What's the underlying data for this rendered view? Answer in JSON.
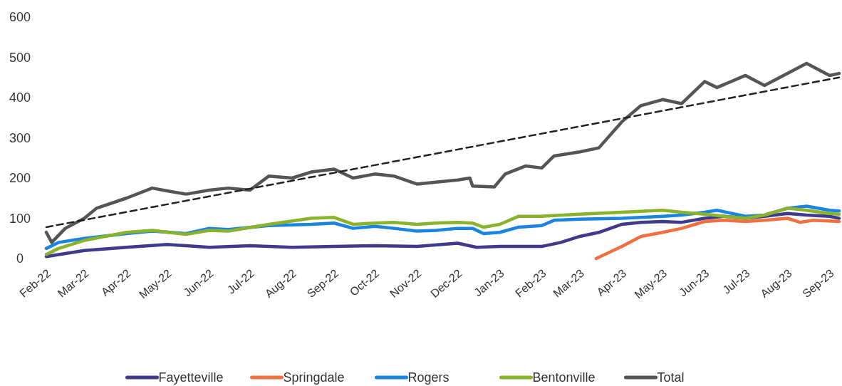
{
  "chart_data": {
    "type": "line",
    "legend": "bottom",
    "grid": false,
    "line_style": "solid",
    "ylim": [
      0,
      600
    ],
    "yticks": [
      0,
      100,
      200,
      300,
      400,
      500,
      600
    ],
    "xlim": [
      "2022-02-01",
      "2023-09-08"
    ],
    "xticks": [
      {
        "value": "2022-02-01",
        "label": "Feb-22"
      },
      {
        "value": "2022-03-01",
        "label": "Mar-22"
      },
      {
        "value": "2022-04-01",
        "label": "Apr-22"
      },
      {
        "value": "2022-05-01",
        "label": "May-22"
      },
      {
        "value": "2022-06-01",
        "label": "Jun-22"
      },
      {
        "value": "2022-07-01",
        "label": "Jul-22"
      },
      {
        "value": "2022-08-01",
        "label": "Aug-22"
      },
      {
        "value": "2022-09-01",
        "label": "Sep-22"
      },
      {
        "value": "2022-10-01",
        "label": "Oct-22"
      },
      {
        "value": "2022-11-01",
        "label": "Nov-22"
      },
      {
        "value": "2022-12-01",
        "label": "Dec-22"
      },
      {
        "value": "2023-01-01",
        "label": "Jan-23"
      },
      {
        "value": "2023-02-01",
        "label": "Feb-23"
      },
      {
        "value": "2023-03-01",
        "label": "Mar-23"
      },
      {
        "value": "2023-04-01",
        "label": "Apr-23"
      },
      {
        "value": "2023-05-01",
        "label": "May-23"
      },
      {
        "value": "2023-06-01",
        "label": "Jun-23"
      },
      {
        "value": "2023-07-01",
        "label": "Jul-23"
      },
      {
        "value": "2023-08-01",
        "label": "Aug-23"
      },
      {
        "value": "2023-09-01",
        "label": "Sep-23"
      }
    ],
    "series": [
      {
        "name": "Fayetteville",
        "color": "#3f3a8c",
        "x": [
          "2022-02-01",
          "2022-03-01",
          "2022-04-01",
          "2022-05-01",
          "2022-06-01",
          "2022-07-01",
          "2022-08-01",
          "2022-09-01",
          "2022-10-01",
          "2022-11-01",
          "2022-12-01",
          "2022-12-15",
          "2023-01-01",
          "2023-02-01",
          "2023-02-15",
          "2023-03-01",
          "2023-03-15",
          "2023-04-01",
          "2023-04-15",
          "2023-05-01",
          "2023-05-15",
          "2023-06-01",
          "2023-06-15",
          "2023-07-01",
          "2023-07-15",
          "2023-08-01",
          "2023-08-15",
          "2023-09-01",
          "2023-09-08"
        ],
        "values": [
          5,
          20,
          28,
          35,
          28,
          32,
          28,
          30,
          32,
          30,
          38,
          28,
          30,
          30,
          40,
          55,
          65,
          85,
          90,
          92,
          90,
          100,
          105,
          100,
          105,
          112,
          108,
          105,
          100
        ]
      },
      {
        "name": "Springdale",
        "color": "#f07040",
        "x": [
          "2023-03-13",
          "2023-04-01",
          "2023-04-15",
          "2023-05-01",
          "2023-05-15",
          "2023-06-01",
          "2023-06-15",
          "2023-07-01",
          "2023-07-15",
          "2023-08-01",
          "2023-08-10",
          "2023-08-20",
          "2023-09-08"
        ],
        "values": [
          0,
          30,
          55,
          65,
          75,
          92,
          95,
          92,
          95,
          100,
          90,
          95,
          92
        ]
      },
      {
        "name": "Rogers",
        "color": "#1a85e0",
        "x": [
          "2022-02-01",
          "2022-02-10",
          "2022-03-01",
          "2022-04-01",
          "2022-04-20",
          "2022-05-15",
          "2022-06-01",
          "2022-06-15",
          "2022-07-15",
          "2022-08-15",
          "2022-09-01",
          "2022-09-15",
          "2022-10-01",
          "2022-10-15",
          "2022-11-01",
          "2022-11-15",
          "2022-12-01",
          "2022-12-12",
          "2022-12-20",
          "2023-01-01",
          "2023-01-15",
          "2023-02-01",
          "2023-02-10",
          "2023-03-01",
          "2023-04-01",
          "2023-05-01",
          "2023-05-15",
          "2023-06-01",
          "2023-06-10",
          "2023-07-01",
          "2023-07-15",
          "2023-08-01",
          "2023-08-15",
          "2023-09-01",
          "2023-09-08"
        ],
        "values": [
          25,
          40,
          50,
          62,
          68,
          62,
          75,
          72,
          82,
          85,
          88,
          75,
          80,
          75,
          68,
          70,
          75,
          75,
          62,
          65,
          78,
          82,
          95,
          98,
          100,
          105,
          108,
          115,
          120,
          105,
          108,
          125,
          130,
          120,
          118
        ]
      },
      {
        "name": "Bentonville",
        "color": "#8ab22a",
        "x": [
          "2022-02-01",
          "2022-02-10",
          "2022-03-01",
          "2022-04-01",
          "2022-04-20",
          "2022-05-15",
          "2022-06-01",
          "2022-06-15",
          "2022-07-15",
          "2022-08-15",
          "2022-09-01",
          "2022-09-15",
          "2022-10-01",
          "2022-10-15",
          "2022-11-01",
          "2022-11-15",
          "2022-12-01",
          "2022-12-12",
          "2022-12-20",
          "2023-01-01",
          "2023-01-15",
          "2023-02-01",
          "2023-03-01",
          "2023-04-01",
          "2023-05-01",
          "2023-05-15",
          "2023-06-01",
          "2023-06-15",
          "2023-07-01",
          "2023-07-15",
          "2023-08-01",
          "2023-08-15",
          "2023-09-01",
          "2023-09-08"
        ],
        "values": [
          10,
          25,
          45,
          65,
          70,
          60,
          70,
          68,
          85,
          100,
          102,
          85,
          88,
          90,
          85,
          88,
          90,
          88,
          78,
          85,
          105,
          105,
          110,
          115,
          120,
          115,
          110,
          105,
          100,
          108,
          125,
          120,
          112,
          110
        ]
      },
      {
        "name": "Total",
        "color": "#555555",
        "x": [
          "2022-02-01",
          "2022-02-05",
          "2022-02-15",
          "2022-03-01",
          "2022-03-10",
          "2022-04-01",
          "2022-04-20",
          "2022-05-01",
          "2022-05-15",
          "2022-06-01",
          "2022-06-15",
          "2022-07-01",
          "2022-07-15",
          "2022-08-01",
          "2022-08-15",
          "2022-09-01",
          "2022-09-15",
          "2022-10-01",
          "2022-10-15",
          "2022-11-01",
          "2022-11-15",
          "2022-12-01",
          "2022-12-10",
          "2022-12-12",
          "2022-12-28",
          "2023-01-05",
          "2023-01-20",
          "2023-02-01",
          "2023-02-10",
          "2023-03-01",
          "2023-03-15",
          "2023-04-01",
          "2023-04-15",
          "2023-05-01",
          "2023-05-15",
          "2023-06-01",
          "2023-06-10",
          "2023-07-01",
          "2023-07-15",
          "2023-08-01",
          "2023-08-15",
          "2023-09-01",
          "2023-09-08"
        ],
        "values": [
          65,
          40,
          75,
          100,
          125,
          150,
          175,
          168,
          160,
          170,
          175,
          170,
          205,
          200,
          215,
          222,
          200,
          210,
          205,
          185,
          190,
          195,
          200,
          180,
          178,
          210,
          230,
          225,
          255,
          265,
          275,
          340,
          380,
          395,
          385,
          440,
          425,
          455,
          430,
          460,
          485,
          455,
          460
        ]
      },
      {
        "type": "line",
        "line_style": "dashed",
        "color": "#222222",
        "x": [
          "2022-02-01",
          "2023-09-08"
        ],
        "values": [
          78,
          450
        ]
      }
    ]
  }
}
